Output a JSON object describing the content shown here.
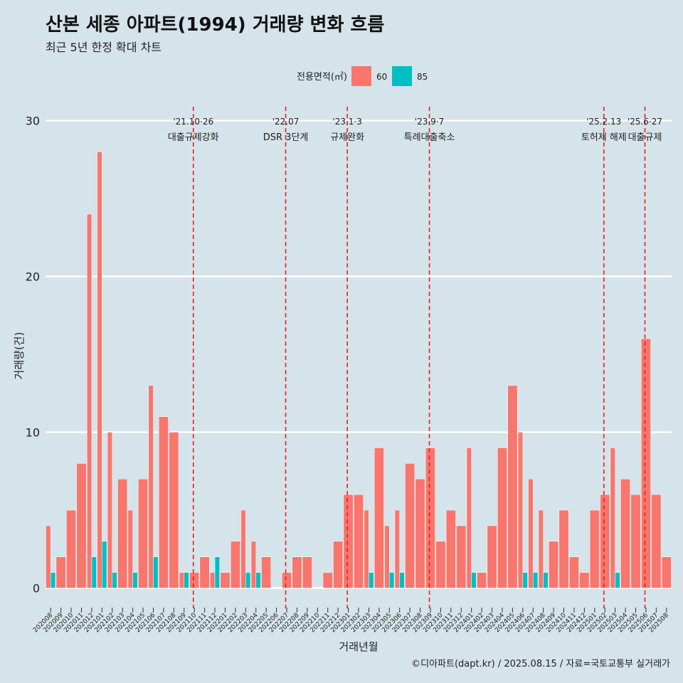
{
  "header": {
    "title": "산본 세종 아파트(1994) 거래량 변화 흐름",
    "subtitle": "최근 5년 한정 확대 차트"
  },
  "footer": {
    "caption": "©디아파트(dapt.kr) / 2025.08.15 / 자료=국토교통부 실거래가"
  },
  "chart_data": {
    "type": "bar",
    "xlabel": "거래년월",
    "ylabel": "거래량(건)",
    "ylim": [
      -1.3,
      30.8
    ],
    "yticks": [
      0,
      10,
      20,
      30
    ],
    "grid": true,
    "legend": {
      "title": "전용면적(㎡)",
      "placement": "top",
      "entries": [
        {
          "name": "60",
          "color": "#f8766d"
        },
        {
          "name": "85",
          "color": "#00bfc4"
        }
      ]
    },
    "categories": [
      "202008",
      "202009",
      "202010",
      "202011",
      "202012",
      "202101",
      "202102",
      "202103",
      "202104",
      "202105",
      "202106",
      "202107",
      "202108",
      "202109",
      "202110",
      "202111",
      "202112",
      "202201",
      "202202",
      "202203",
      "202204",
      "202205",
      "202206",
      "202207",
      "202208",
      "202209",
      "202210",
      "202211",
      "202212",
      "202301",
      "202302",
      "202303",
      "202304",
      "202305",
      "202306",
      "202307",
      "202308",
      "202309",
      "202310",
      "202311",
      "202312",
      "202401",
      "202402",
      "202403",
      "202404",
      "202405",
      "202406",
      "202407",
      "202408",
      "202409",
      "202410",
      "202411",
      "202412",
      "202501",
      "202502",
      "202503",
      "202504",
      "202505",
      "202506",
      "202507",
      "202508"
    ],
    "series": [
      {
        "name": "60",
        "color": "#f8766d",
        "values": [
          4,
          2,
          5,
          8,
          24,
          28,
          10,
          7,
          5,
          7,
          13,
          11,
          10,
          1,
          1,
          2,
          1,
          1,
          3,
          5,
          3,
          2,
          0,
          1,
          2,
          2,
          0,
          1,
          3,
          6,
          6,
          5,
          9,
          4,
          5,
          8,
          7,
          9,
          3,
          5,
          4,
          9,
          1,
          4,
          9,
          13,
          10,
          7,
          5,
          3,
          5,
          2,
          1,
          5,
          6,
          9,
          7,
          6,
          16,
          6,
          2
        ]
      },
      {
        "name": "85",
        "color": "#00bfc4",
        "values": [
          1,
          0,
          0,
          0,
          2,
          3,
          1,
          0,
          1,
          0,
          2,
          0,
          0,
          1,
          0,
          0,
          2,
          0,
          0,
          1,
          1,
          0,
          0,
          0,
          0,
          0,
          0,
          0,
          0,
          0,
          0,
          1,
          0,
          1,
          1,
          0,
          0,
          0,
          0,
          0,
          0,
          1,
          0,
          0,
          0,
          0,
          1,
          1,
          1,
          0,
          0,
          0,
          0,
          0,
          0,
          1,
          0,
          0,
          0,
          0,
          0
        ]
      }
    ],
    "annotations": [
      {
        "x": 14.4,
        "line1": "'21.10·26",
        "line2": "대출규제강화"
      },
      {
        "x": 23.4,
        "line1": "'22.07",
        "line2": "DSR 3단계"
      },
      {
        "x": 29.4,
        "line1": "'23.1·3",
        "line2": "규제완화"
      },
      {
        "x": 37.4,
        "line1": "'23.9·7",
        "line2": "특례대출축소"
      },
      {
        "x": 54.4,
        "line1": "'25.2.13",
        "line2": "토허제 해제"
      },
      {
        "x": 58.4,
        "line1": "'25.6·27",
        "line2": "대출규제"
      }
    ]
  }
}
